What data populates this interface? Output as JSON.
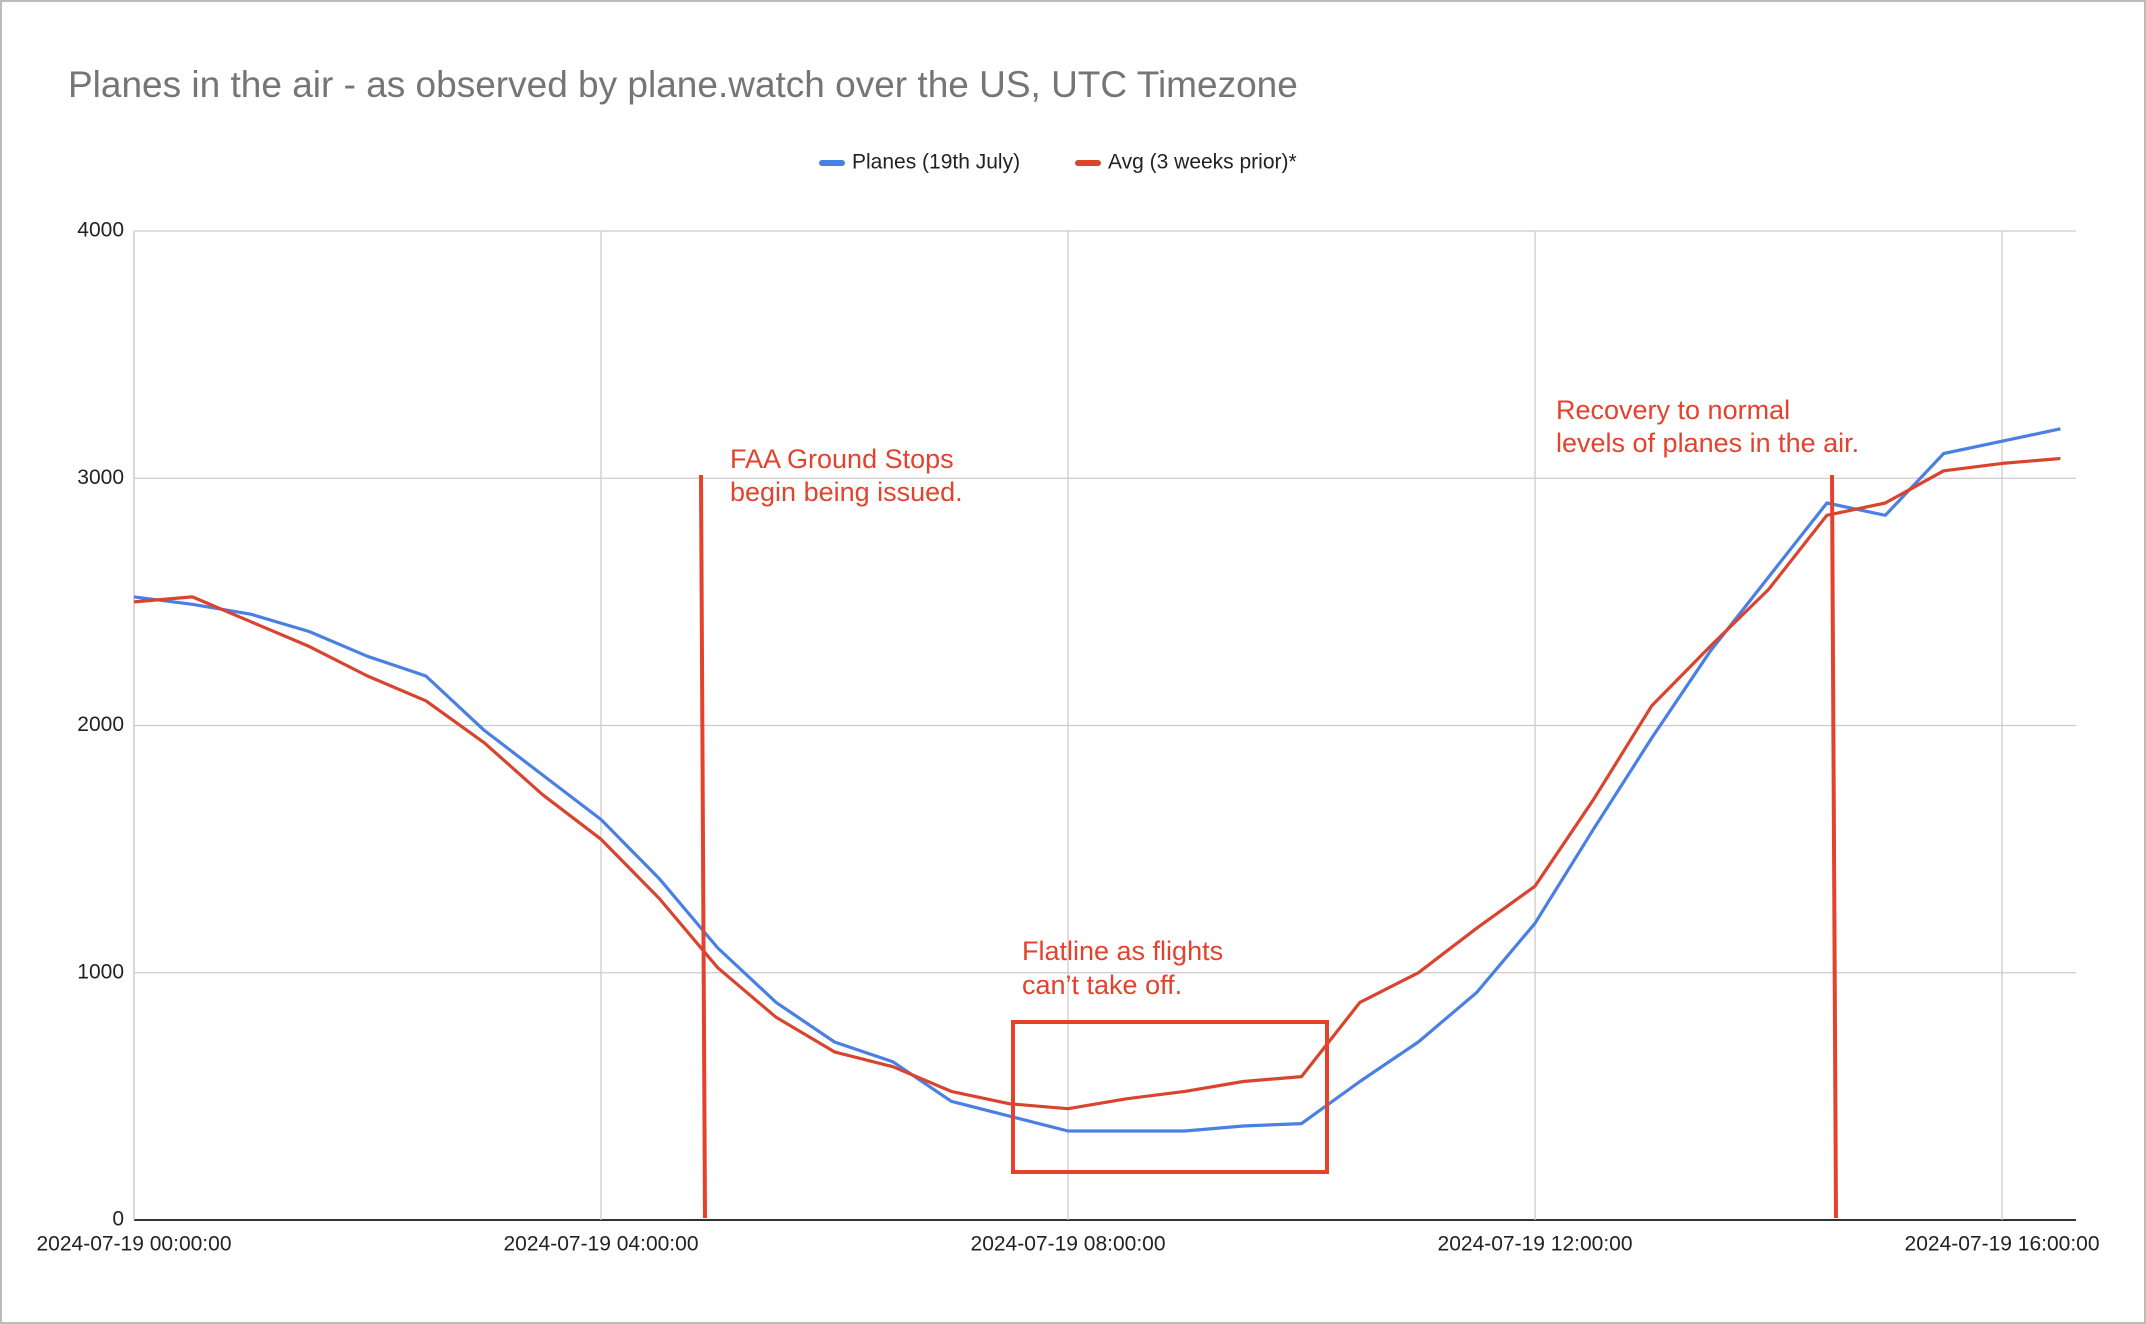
{
  "chart_data": {
    "type": "line",
    "title": "Planes in the air - as observed by plane.watch over the US, UTC Timezone",
    "x": [
      "2024-07-19 00:00:00",
      "2024-07-19 00:30:00",
      "2024-07-19 01:00:00",
      "2024-07-19 01:30:00",
      "2024-07-19 02:00:00",
      "2024-07-19 02:30:00",
      "2024-07-19 03:00:00",
      "2024-07-19 03:30:00",
      "2024-07-19 04:00:00",
      "2024-07-19 04:30:00",
      "2024-07-19 05:00:00",
      "2024-07-19 05:30:00",
      "2024-07-19 06:00:00",
      "2024-07-19 06:30:00",
      "2024-07-19 07:00:00",
      "2024-07-19 07:30:00",
      "2024-07-19 08:00:00",
      "2024-07-19 08:30:00",
      "2024-07-19 09:00:00",
      "2024-07-19 09:30:00",
      "2024-07-19 10:00:00",
      "2024-07-19 10:30:00",
      "2024-07-19 11:00:00",
      "2024-07-19 11:30:00",
      "2024-07-19 12:00:00",
      "2024-07-19 12:30:00",
      "2024-07-19 13:00:00",
      "2024-07-19 13:30:00",
      "2024-07-19 14:00:00",
      "2024-07-19 14:30:00",
      "2024-07-19 15:00:00",
      "2024-07-19 15:30:00",
      "2024-07-19 16:00:00",
      "2024-07-19 16:30:00"
    ],
    "series": [
      {
        "name": "Planes (19th July)",
        "color": "#4a7fe3",
        "values": [
          2520,
          2490,
          2450,
          2380,
          2280,
          2200,
          1980,
          1800,
          1620,
          1380,
          1100,
          880,
          720,
          640,
          480,
          420,
          360,
          360,
          360,
          380,
          390,
          560,
          720,
          920,
          1200,
          1580,
          1950,
          2300,
          2600,
          2900,
          2850,
          3100,
          3150,
          3200
        ]
      },
      {
        "name": "Avg (3 weeks prior)*",
        "color": "#d9442f",
        "values": [
          2500,
          2520,
          2420,
          2320,
          2200,
          2100,
          1930,
          1720,
          1540,
          1300,
          1020,
          820,
          680,
          620,
          520,
          470,
          450,
          490,
          520,
          560,
          580,
          880,
          1000,
          1180,
          1350,
          1700,
          2080,
          2320,
          2550,
          2850,
          2900,
          3030,
          3060,
          3080
        ]
      }
    ],
    "xlim": [
      "2024-07-19 00:00:00",
      "2024-07-19 16:38:00"
    ],
    "xticks": [
      "2024-07-19 00:00:00",
      "2024-07-19 04:00:00",
      "2024-07-19 08:00:00",
      "2024-07-19 12:00:00",
      "2024-07-19 16:00:00"
    ],
    "ylim": [
      0,
      4000
    ],
    "yticks": [
      0,
      1000,
      2000,
      3000,
      4000
    ],
    "grid": true,
    "annotations": [
      [
        "FAA Ground Stops",
        "begin being issued."
      ],
      [
        "Flatline as flights",
        "can’t take off."
      ],
      [
        "Recovery to normal",
        "levels of planes in the air."
      ]
    ]
  }
}
